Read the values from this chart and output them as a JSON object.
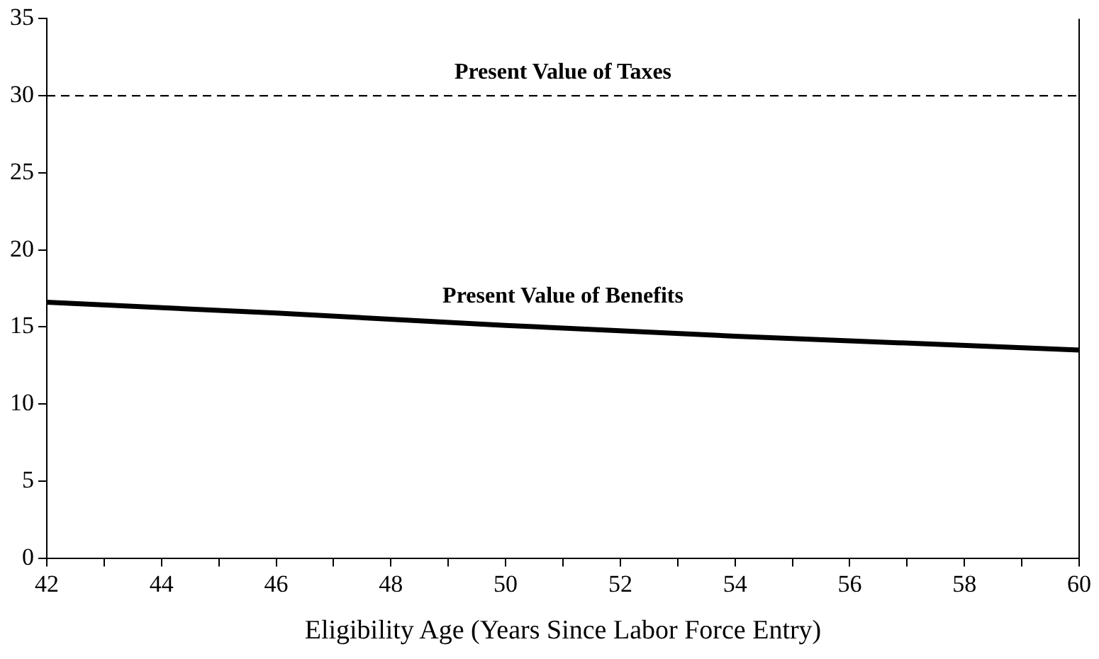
{
  "chart_data": {
    "type": "line",
    "xlabel": "Eligibility Age (Years Since Labor Force Entry)",
    "x": [
      42,
      46,
      50,
      54,
      60
    ],
    "series": [
      {
        "name": "Present Value of Benefits",
        "color": "#000000",
        "values": [
          16.6,
          15.9,
          15.1,
          14.4,
          13.5
        ]
      }
    ],
    "xlim": [
      42,
      60
    ],
    "xticks": [
      42,
      {
        "value": 43,
        "label": null
      },
      44,
      {
        "value": 45,
        "label": null
      },
      46,
      {
        "value": 47,
        "label": null
      },
      48,
      {
        "value": 49,
        "label": null
      },
      50,
      {
        "value": 51,
        "label": null
      },
      52,
      {
        "value": 53,
        "label": null
      },
      54,
      {
        "value": 55,
        "label": null
      },
      56,
      {
        "value": 57,
        "label": null
      },
      58,
      {
        "value": 59,
        "label": null
      },
      60
    ],
    "ylim": [
      0,
      35
    ],
    "yticks": [
      0,
      5,
      10,
      15,
      20,
      25,
      30,
      35
    ],
    "ref_lines": [
      {
        "axis": "y",
        "value": 30,
        "label": "Present Value of Taxes",
        "color": "#000000",
        "line_style": "dashed"
      }
    ],
    "grid": false,
    "legend": false,
    "marker": "none",
    "line_style": "solid"
  }
}
